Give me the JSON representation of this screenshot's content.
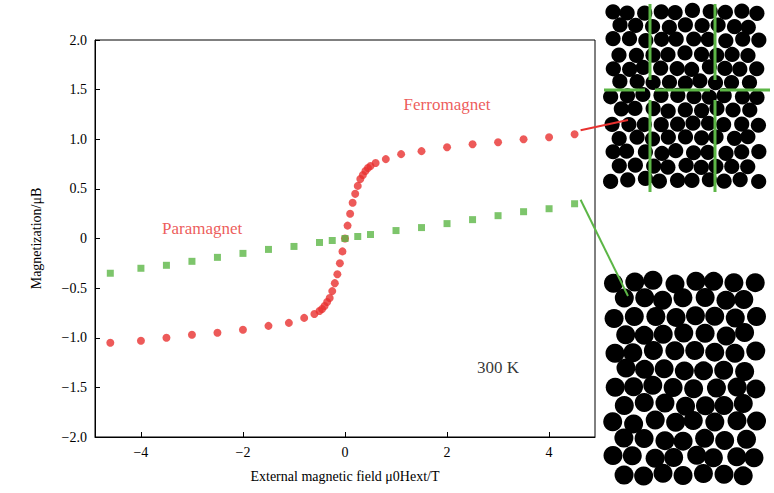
{
  "chart_data": {
    "type": "scatter",
    "x_label": "External magnetic field μ0Hext/T",
    "y_label": "Magnetization/μB",
    "xlim": [
      -4.9,
      4.9
    ],
    "xticks": [
      {
        "value": -4,
        "label": "−4"
      },
      {
        "value": -2,
        "label": "−2"
      },
      0,
      2,
      4
    ],
    "ylim": [
      -2,
      2
    ],
    "yticks": [
      {
        "value": -2,
        "label": "−2.0"
      },
      {
        "value": -1.5,
        "label": "−1.5"
      },
      {
        "value": -1,
        "label": "−1.0"
      },
      {
        "value": -0.5,
        "label": "−0.5"
      },
      0,
      0.5,
      {
        "value": 1,
        "label": "1.0"
      },
      1.5,
      {
        "value": 2,
        "label": "2.0"
      }
    ],
    "grid": false,
    "series": [
      {
        "color": "#e8312f",
        "marker": "circle",
        "x": [
          -4.6,
          -4.0,
          -3.5,
          -3.0,
          -2.5,
          -2.0,
          -1.5,
          -1.1,
          -0.8,
          -0.6,
          -0.5,
          -0.45,
          -0.4,
          -0.35,
          -0.3,
          -0.25,
          -0.2,
          -0.15,
          -0.1,
          -0.05,
          0,
          0.05,
          0.1,
          0.15,
          0.2,
          0.25,
          0.3,
          0.35,
          0.4,
          0.45,
          0.5,
          0.6,
          0.8,
          1.1,
          1.5,
          2.0,
          2.5,
          3.0,
          3.5,
          4.0,
          4.5
        ],
        "values": [
          -1.05,
          -1.03,
          -1.0,
          -0.97,
          -0.95,
          -0.92,
          -0.88,
          -0.85,
          -0.8,
          -0.76,
          -0.73,
          -0.71,
          -0.68,
          -0.64,
          -0.6,
          -0.53,
          -0.45,
          -0.36,
          -0.25,
          -0.13,
          0,
          0.13,
          0.25,
          0.36,
          0.45,
          0.53,
          0.6,
          0.64,
          0.68,
          0.71,
          0.73,
          0.76,
          0.8,
          0.85,
          0.88,
          0.92,
          0.95,
          0.97,
          1.0,
          1.02,
          1.05
        ]
      },
      {
        "color": "#5cb646",
        "marker": "square",
        "x": [
          -4.6,
          -4.0,
          -3.5,
          -3.0,
          -2.5,
          -2.0,
          -1.5,
          -1.0,
          -0.5,
          -0.25,
          0,
          0.25,
          0.5,
          1.0,
          1.5,
          2.0,
          2.5,
          3.0,
          3.5,
          4.0,
          4.5
        ],
        "values": [
          -0.35,
          -0.3,
          -0.27,
          -0.23,
          -0.19,
          -0.15,
          -0.11,
          -0.08,
          -0.04,
          -0.02,
          0,
          0.02,
          0.04,
          0.08,
          0.11,
          0.15,
          0.19,
          0.23,
          0.27,
          0.3,
          0.35
        ]
      }
    ],
    "annotations": [
      {
        "text": "Ferromagnet",
        "x": 2.0,
        "y": 1.35,
        "color": "#e8312f"
      },
      {
        "text": "Paramagnet",
        "x": -2.8,
        "y": 0.1,
        "color": "#e8312f"
      },
      {
        "text": "300 K",
        "x": 3.0,
        "y": -1.3,
        "color": "#000000"
      }
    ]
  }
}
